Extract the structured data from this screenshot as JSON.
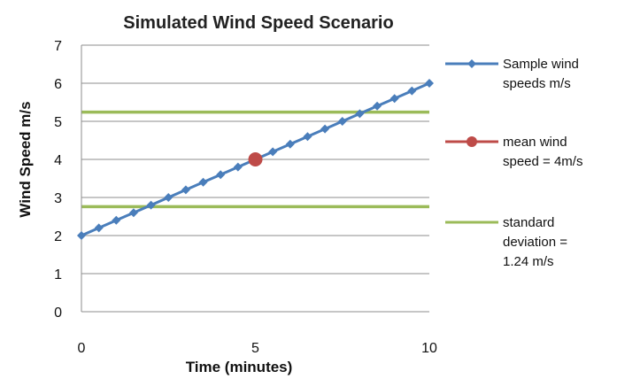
{
  "chart_data": {
    "type": "line",
    "title": "Simulated Wind Speed Scenario",
    "xlabel": "Time (minutes)",
    "ylabel": "Wind Speed m/s",
    "xlim": [
      0,
      10
    ],
    "ylim": [
      0,
      7
    ],
    "x_ticks": [
      "0",
      "5",
      "10"
    ],
    "y_ticks": [
      "0",
      "1",
      "2",
      "3",
      "4",
      "5",
      "6",
      "7"
    ],
    "grid": "horizontal",
    "legend_position": "right",
    "series": [
      {
        "name": "Sample wind speeds m/s",
        "kind": "line-diamond",
        "color": "#4a7ebb",
        "x": [
          0,
          0.5,
          1,
          1.5,
          2,
          2.5,
          3,
          3.5,
          4,
          4.5,
          5,
          5.5,
          6,
          6.5,
          7,
          7.5,
          8,
          8.5,
          9,
          9.5,
          10
        ],
        "y": [
          2.0,
          2.2,
          2.4,
          2.6,
          2.8,
          3.0,
          3.2,
          3.4,
          3.6,
          3.8,
          4.0,
          4.2,
          4.4,
          4.6,
          4.8,
          5.0,
          5.2,
          5.4,
          5.6,
          5.8,
          6.0
        ]
      },
      {
        "name": "mean wind speed = 4m/s",
        "kind": "point",
        "color": "#be4b48",
        "x": [
          5
        ],
        "y": [
          4
        ]
      },
      {
        "name": "standard deviation = 1.24 m/s",
        "kind": "hlines",
        "color": "#9bbb59",
        "y": [
          2.76,
          5.24
        ]
      }
    ],
    "legend": [
      {
        "lines": [
          "Sample wind",
          "speeds m/s"
        ]
      },
      {
        "lines": [
          "mean wind",
          "speed = 4m/s"
        ]
      },
      {
        "lines": [
          "standard",
          "deviation =",
          "1.24 m/s"
        ]
      }
    ]
  }
}
